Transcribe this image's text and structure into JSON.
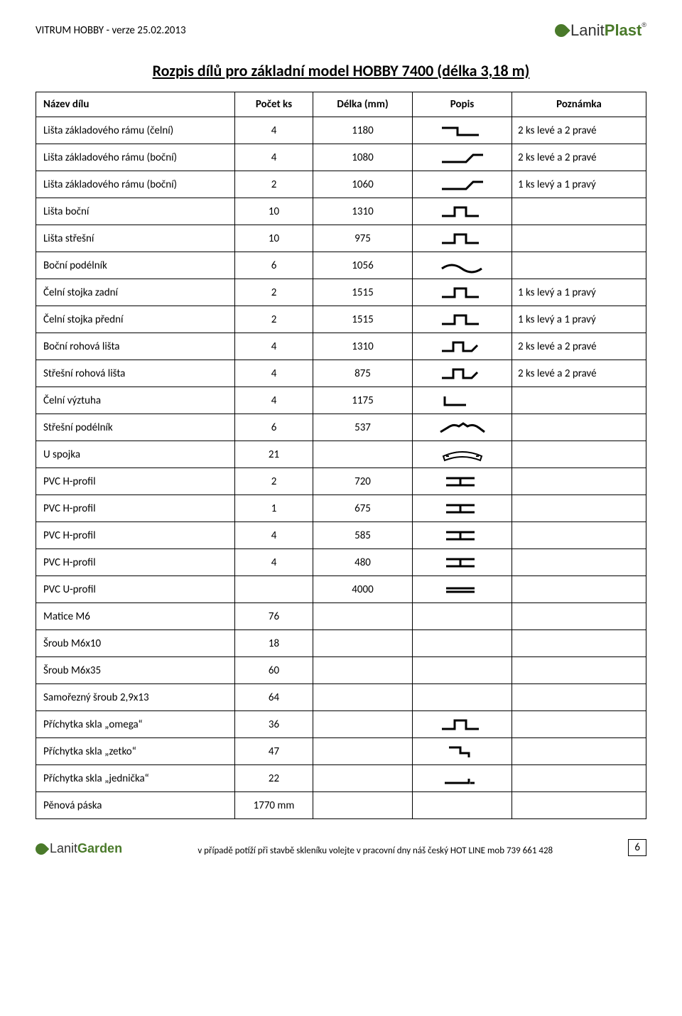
{
  "header": {
    "doc_version": "VITRUM HOBBY - verze 25.02.2013",
    "logo_brand_a": "Lanit",
    "logo_brand_b": "Plast",
    "logo_reg": "®"
  },
  "title": "Rozpis dílů pro základní model HOBBY 7400 (délka 3,18 m)",
  "table": {
    "columns": [
      "Název dílu",
      "Počet ks",
      "Délka (mm)",
      "Popis",
      "Poznámka"
    ],
    "rows": [
      {
        "name": "Lišta základového rámu (čelní)",
        "pocet": "4",
        "delka": "1180",
        "icon": "z-left",
        "pozn": "2 ks levé a 2 pravé"
      },
      {
        "name": "Lišta základového rámu (boční)",
        "pocet": "4",
        "delka": "1080",
        "icon": "z-right",
        "pozn": "2 ks levé a 2 pravé"
      },
      {
        "name": "Lišta základového rámu (boční)",
        "pocet": "2",
        "delka": "1060",
        "icon": "z-right",
        "pozn": "1 ks levý a 1 pravý"
      },
      {
        "name": "Lišta boční",
        "pocet": "10",
        "delka": "1310",
        "icon": "pulse",
        "pozn": ""
      },
      {
        "name": "Lišta střešní",
        "pocet": "10",
        "delka": "975",
        "icon": "pulse",
        "pozn": ""
      },
      {
        "name": "Boční podélník",
        "pocet": "6",
        "delka": "1056",
        "icon": "wave",
        "pozn": ""
      },
      {
        "name": "Čelní stojka zadní",
        "pocet": "2",
        "delka": "1515",
        "icon": "pulse",
        "pozn": "1 ks levý a 1 pravý"
      },
      {
        "name": "Čelní stojka přední",
        "pocet": "2",
        "delka": "1515",
        "icon": "pulse",
        "pozn": "1 ks levý a 1 pravý"
      },
      {
        "name": "Boční rohová lišta",
        "pocet": "4",
        "delka": "1310",
        "icon": "pulse-hook",
        "pozn": "2 ks levé a 2 pravé"
      },
      {
        "name": "Střešní rohová lišta",
        "pocet": "4",
        "delka": "875",
        "icon": "pulse-hook",
        "pozn": "2 ks levé a 2 pravé"
      },
      {
        "name": "Čelní výztuha",
        "pocet": "4",
        "delka": "1175",
        "icon": "l-shape",
        "pozn": ""
      },
      {
        "name": "Střešní podélník",
        "pocet": "6",
        "delka": "537",
        "icon": "wave-hat",
        "pozn": ""
      },
      {
        "name": "U spojka",
        "pocet": "21",
        "delka": "",
        "icon": "u-bracket",
        "pozn": ""
      },
      {
        "name": "PVC  H-profil",
        "pocet": "2",
        "delka": "720",
        "icon": "h-profile",
        "pozn": ""
      },
      {
        "name": "PVC  H-profil",
        "pocet": "1",
        "delka": "675",
        "icon": "h-profile",
        "pozn": ""
      },
      {
        "name": "PVC  H-profil",
        "pocet": "4",
        "delka": "585",
        "icon": "h-profile",
        "pozn": ""
      },
      {
        "name": "PVC  H-profil",
        "pocet": "4",
        "delka": "480",
        "icon": "h-profile",
        "pozn": ""
      },
      {
        "name": "PVC  U-profil",
        "pocet": "",
        "delka": "4000",
        "icon": "u-profile",
        "pozn": ""
      },
      {
        "name": "Matice M6",
        "pocet": "76",
        "delka": "",
        "icon": "",
        "pozn": ""
      },
      {
        "name": "Šroub M6x10",
        "pocet": "18",
        "delka": "",
        "icon": "",
        "pozn": ""
      },
      {
        "name": "Šroub M6x35",
        "pocet": "60",
        "delka": "",
        "icon": "",
        "pozn": ""
      },
      {
        "name": "Samořezný šroub 2,9x13",
        "pocet": "64",
        "delka": "",
        "icon": "",
        "pozn": ""
      },
      {
        "name": "Příchytka skla „omega“",
        "pocet": "36",
        "delka": "",
        "icon": "pulse",
        "pozn": ""
      },
      {
        "name": "Příchytka skla „zetko“",
        "pocet": "47",
        "delka": "",
        "icon": "zetko",
        "pozn": ""
      },
      {
        "name": "Příchytka skla „jednička“",
        "pocet": "22",
        "delka": "",
        "icon": "jednicka",
        "pozn": ""
      },
      {
        "name": "Pěnová páska",
        "pocet": "1770 mm",
        "delka": "",
        "icon": "",
        "pozn": ""
      }
    ]
  },
  "footer": {
    "logo_a": "Lanit",
    "logo_b": "Garden",
    "text": "v případě potíží při stavbě skleníku volejte v pracovní dny náš český HOT LINE mob 739 661 428",
    "page": "6"
  },
  "icons": {
    "stroke": "#000000",
    "stroke_width": 3,
    "width": 70,
    "height": 24
  }
}
